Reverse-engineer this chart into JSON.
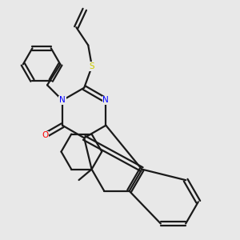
{
  "bg_color": "#e8e8e8",
  "bond_color": "#1a1a1a",
  "N_color": "#0000ff",
  "O_color": "#ff0000",
  "S_color": "#cccc00",
  "line_width": 1.6,
  "figsize": [
    3.0,
    3.0
  ],
  "dpi": 100,
  "xlim": [
    0,
    10
  ],
  "ylim": [
    0,
    10
  ],
  "font_size": 7.5
}
